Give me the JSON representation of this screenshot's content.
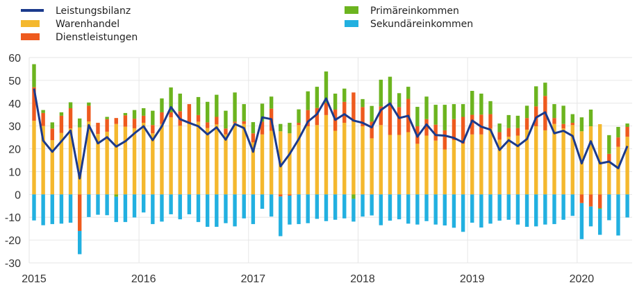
{
  "chart_data": {
    "type": "bar",
    "stacked": true,
    "title": "",
    "xlabel": "",
    "ylabel": "",
    "ylim": [
      -30,
      60
    ],
    "yticks": [
      60,
      50,
      40,
      30,
      20,
      10,
      0,
      -10,
      -20,
      -30
    ],
    "xtick_labels": [
      "2015",
      "2016",
      "2017",
      "2018",
      "2019",
      "2020"
    ],
    "grid": true,
    "start": "2015-01",
    "frequency": "monthly",
    "legend": {
      "placement": "top",
      "items": [
        {
          "name": "Leistungsbilanz",
          "kind": "line",
          "color": "#1B3A8C"
        },
        {
          "name": "Warenhandel",
          "kind": "bar",
          "color": "#F4B82E"
        },
        {
          "name": "Dienstleistungen",
          "kind": "bar",
          "color": "#EE5A1E"
        },
        {
          "name": "Primäreinkommen",
          "kind": "bar",
          "color": "#6CB41F"
        },
        {
          "name": "Sekundäreinkommen",
          "kind": "bar",
          "color": "#22B0E0"
        }
      ]
    },
    "series": [
      {
        "name": "Warenhandel",
        "color": "#F4B82E",
        "values": [
          32.3,
          30,
          23.8,
          27,
          28.9,
          29.4,
          32,
          26.5,
          27.5,
          30.9,
          29.7,
          29,
          31.4,
          26.8,
          30.9,
          33.8,
          30.1,
          30.9,
          31.9,
          29.1,
          30.7,
          26.3,
          31.4,
          30.9,
          22.8,
          26.3,
          27.9,
          27.7,
          26.8,
          30.4,
          29.9,
          30.4,
          34.8,
          27.9,
          31.4,
          31.9,
          29.9,
          24.6,
          30.4,
          26.1,
          26.1,
          27.3,
          22.2,
          25.8,
          23.6,
          19.7,
          23.8,
          22.2,
          26.3,
          26.3,
          28.9,
          24,
          25.3,
          25.8,
          28.4,
          29.9,
          28.1,
          30.9,
          28.9,
          30.4,
          27.7,
          29.9,
          30.8,
          14.6,
          20.9,
          25.3
        ]
      },
      {
        "name": "Dienstleistungen",
        "color": "#EE5A1E",
        "values": [
          14.7,
          5.7,
          5.1,
          7.5,
          8.9,
          -16,
          6.9,
          4.9,
          5.5,
          2.6,
          5,
          4.2,
          3.1,
          3.6,
          5.1,
          2.2,
          6.4,
          8.7,
          2.9,
          2.5,
          3.3,
          2.6,
          0.5,
          1.2,
          4,
          5.6,
          9.7,
          -0.9,
          -0.5,
          1,
          7.1,
          7.5,
          5.3,
          9.3,
          9.2,
          12.8,
          8.4,
          7.3,
          8.2,
          14,
          12.2,
          14.6,
          7.7,
          7.2,
          7,
          8.4,
          9.2,
          11.8,
          8.6,
          8.7,
          6.3,
          3.3,
          3.8,
          3.3,
          5.1,
          8.7,
          15.1,
          2.6,
          2,
          1,
          -3.8,
          -5.3,
          -6,
          3.2,
          4.1,
          4.3
        ]
      },
      {
        "name": "Primäreinkommen",
        "color": "#6CB41F",
        "values": [
          10.1,
          1.3,
          2.7,
          1.5,
          2.6,
          3.9,
          1.4,
          0,
          1,
          -1,
          1,
          3.8,
          3.3,
          6.3,
          6.1,
          10.9,
          7.7,
          0,
          7.9,
          9,
          9.7,
          7.8,
          12.8,
          7.5,
          4.9,
          7.9,
          5.3,
          3.2,
          4.6,
          5.9,
          8.2,
          9.3,
          13.8,
          7,
          5.8,
          -1.9,
          3.5,
          6.9,
          11.7,
          11.5,
          6.1,
          5.3,
          8.5,
          9.9,
          8.7,
          11.2,
          6.6,
          5.6,
          10.5,
          9.2,
          5.7,
          3.8,
          5.7,
          5.4,
          5.4,
          8.8,
          5.8,
          6.1,
          8,
          3.8,
          6.1,
          7.3,
          -0.4,
          8.2,
          4.6,
          1.5
        ]
      },
      {
        "name": "Sekundäreinkommen",
        "color": "#22B0E0",
        "values": [
          -11.4,
          -13.5,
          -13,
          -12.8,
          -12.4,
          -10.2,
          -9.9,
          -8.9,
          -9.1,
          -11.1,
          -12.1,
          -10.1,
          -7.9,
          -13,
          -11.9,
          -8.7,
          -10.9,
          -8.7,
          -12.1,
          -14.2,
          -14.2,
          -12.6,
          -14,
          -10.5,
          -13,
          -6.3,
          -9.7,
          -17.4,
          -12.7,
          -13,
          -12.6,
          -10.7,
          -11.7,
          -11.1,
          -10.5,
          -10,
          -9.7,
          -9.2,
          -13.5,
          -11.5,
          -10.9,
          -12.8,
          -13.2,
          -11.7,
          -13.2,
          -13.6,
          -14.6,
          -16.4,
          -12.4,
          -14.5,
          -12.8,
          -11.5,
          -11.1,
          -13.2,
          -14.2,
          -14,
          -13.2,
          -13,
          -11.1,
          -9.4,
          -15.8,
          -8.7,
          -11.3,
          -11.3,
          -18,
          -10.1
        ]
      },
      {
        "name": "Leistungsbilanz",
        "color": "#1B3A8C",
        "type": "line",
        "values": [
          46.4,
          23.6,
          18.7,
          23.3,
          28,
          7,
          30.4,
          22.4,
          25.1,
          21,
          23.3,
          26.8,
          29.9,
          23.8,
          29.9,
          38.3,
          33,
          31.4,
          29.9,
          26.3,
          29.4,
          24,
          30.9,
          29.1,
          18.7,
          33.8,
          33,
          12.3,
          17.7,
          24.3,
          31.9,
          35.2,
          42.1,
          32.7,
          35.2,
          32.4,
          31.4,
          29.4,
          37,
          39.9,
          33.5,
          34.5,
          25.3,
          30.7,
          26,
          25.8,
          24.8,
          22.8,
          32.4,
          29.7,
          28.4,
          19.5,
          23.8,
          21.2,
          24.3,
          33.7,
          36,
          26.8,
          27.9,
          25.6,
          13.6,
          23.3,
          13.6,
          14.4,
          11.5,
          21.2
        ]
      }
    ]
  }
}
